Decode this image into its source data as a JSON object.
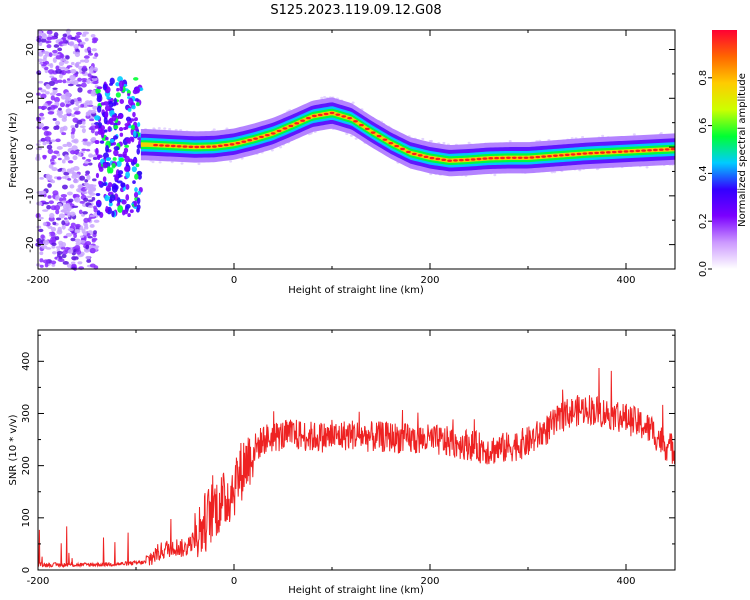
{
  "figure": {
    "title": "S125.2023.119.09.12.G08"
  },
  "chart_data": [
    {
      "type": "heatmap",
      "xlabel": "Height of straight line (km)",
      "ylabel": "Frequency (Hz)",
      "xlim": [
        -200,
        450
      ],
      "ylim": [
        -25,
        24
      ],
      "x_ticks": [
        -200,
        0,
        200,
        400
      ],
      "y_ticks": [
        -20,
        -10,
        0,
        10,
        20
      ],
      "colorbar": {
        "label": "Normalized spectral amplitude",
        "range": [
          0,
          1
        ],
        "ticks": [
          "0.0",
          "0.2",
          "0.4",
          "0.6",
          "0.8"
        ],
        "colors": [
          "#ffffff",
          "#cc99ff",
          "#7b00ff",
          "#3300ff",
          "#00ccff",
          "#00ff33",
          "#ccff00",
          "#ffcc00",
          "#ff6600",
          "#ff0033"
        ]
      },
      "ridge": {
        "name": "dominant frequency",
        "x": [
          -90,
          -60,
          -40,
          -20,
          0,
          20,
          40,
          60,
          80,
          100,
          120,
          140,
          160,
          180,
          200,
          220,
          240,
          260,
          280,
          300,
          320,
          340,
          360,
          380,
          400,
          420,
          440,
          450
        ],
        "y": [
          0.5,
          0.2,
          0.0,
          0.1,
          0.6,
          1.6,
          2.8,
          4.5,
          6.3,
          7.0,
          5.8,
          3.2,
          0.8,
          -1.2,
          -2.2,
          -2.8,
          -2.6,
          -2.3,
          -2.2,
          -2.2,
          -1.9,
          -1.6,
          -1.3,
          -1.1,
          -0.9,
          -0.7,
          -0.5,
          -0.4
        ]
      }
    },
    {
      "type": "line",
      "xlabel": "Height of straight line (km)",
      "ylabel": "SNR (10 * v/v)",
      "xlim": [
        -200,
        450
      ],
      "ylim": [
        0,
        460
      ],
      "x_ticks": [
        -200,
        0,
        200,
        400
      ],
      "y_ticks": [
        0,
        100,
        200,
        300,
        400
      ],
      "color": "#ee2222",
      "series": [
        {
          "x": [
            -200,
            -150,
            -110,
            -90,
            -80,
            -70,
            -60,
            -50,
            -40,
            -30,
            -20,
            -10,
            0,
            10,
            20,
            30,
            40,
            60,
            80,
            100,
            120,
            140,
            160,
            180,
            200,
            220,
            240,
            260,
            280,
            300,
            320,
            340,
            360,
            380,
            400,
            420,
            430,
            440,
            450
          ],
          "y": [
            10,
            10,
            12,
            15,
            30,
            40,
            45,
            40,
            60,
            90,
            120,
            130,
            160,
            200,
            230,
            250,
            255,
            260,
            255,
            255,
            260,
            255,
            255,
            250,
            250,
            245,
            240,
            230,
            235,
            245,
            270,
            300,
            310,
            300,
            290,
            275,
            260,
            240,
            230
          ]
        }
      ]
    }
  ]
}
